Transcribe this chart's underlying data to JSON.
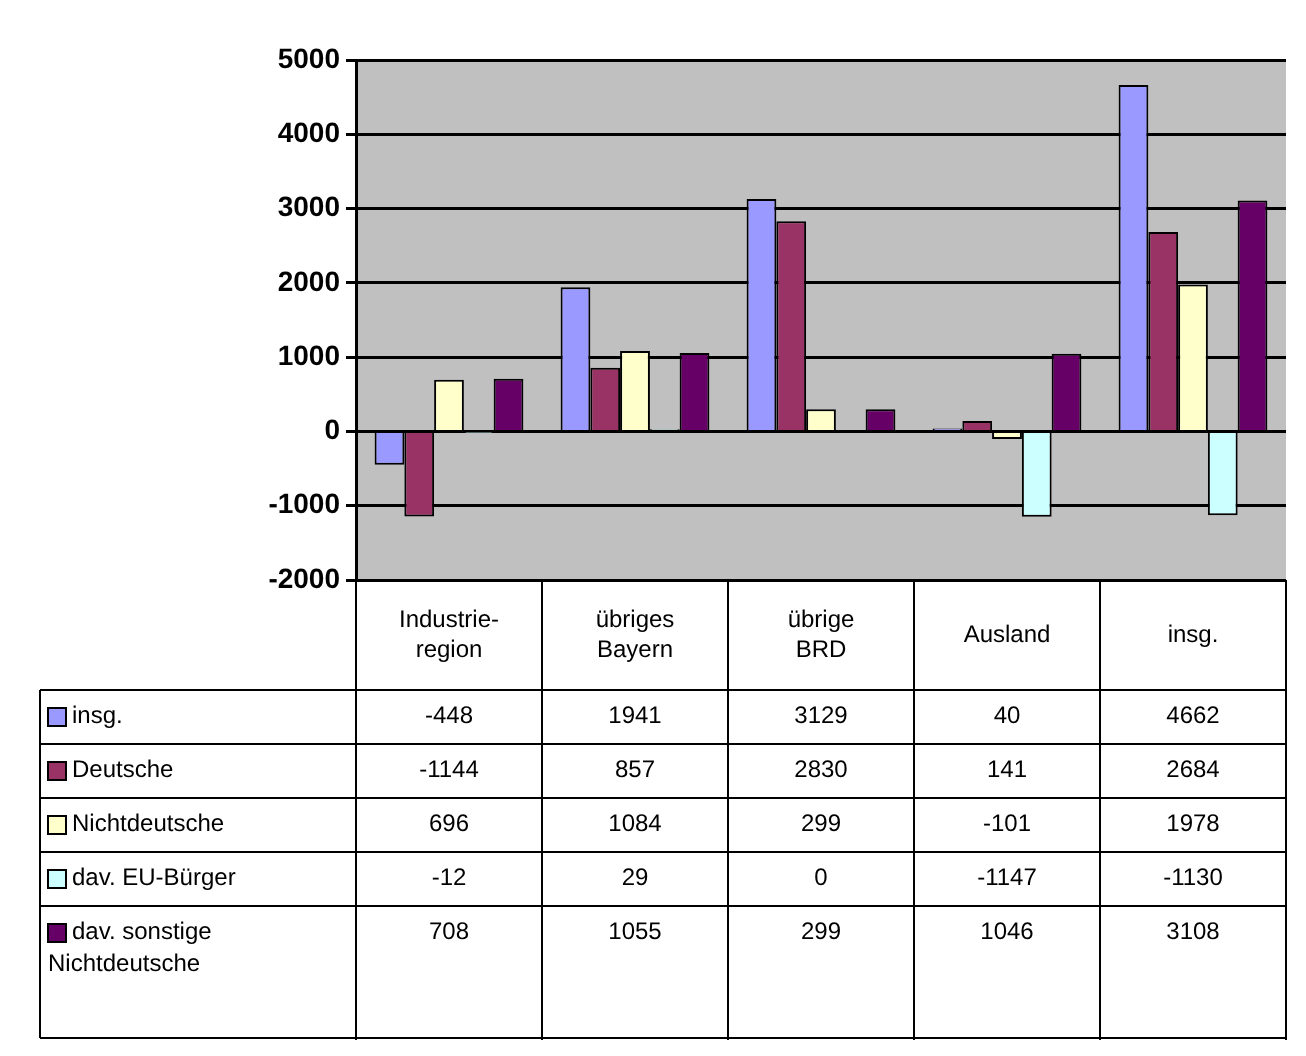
{
  "chart_data": {
    "type": "bar",
    "categories": [
      "Industrie-region",
      "übriges Bayern",
      "übrige BRD",
      "Ausland",
      "insg."
    ],
    "series": [
      {
        "name": "insg.",
        "color": "#9999ff",
        "values": [
          -448,
          1941,
          3129,
          40,
          4662
        ]
      },
      {
        "name": "Deutsche",
        "color": "#993366",
        "values": [
          -1144,
          857,
          2830,
          141,
          2684
        ]
      },
      {
        "name": "Nichtdeutsche",
        "color": "#ffffcc",
        "values": [
          696,
          1084,
          299,
          -101,
          1978
        ]
      },
      {
        "name": "dav. EU-Bürger",
        "color": "#ccffff",
        "values": [
          -12,
          29,
          0,
          -1147,
          -1130
        ]
      },
      {
        "name": "dav. sonstige Nichtdeutsche",
        "color": "#660066",
        "values": [
          708,
          1055,
          299,
          1046,
          3108
        ]
      }
    ],
    "ylim": [
      -2000,
      5000
    ],
    "yticks": [
      -2000,
      -1000,
      0,
      1000,
      2000,
      3000,
      4000,
      5000
    ],
    "grid": "y",
    "legend": "bottom",
    "data_labels": true
  }
}
